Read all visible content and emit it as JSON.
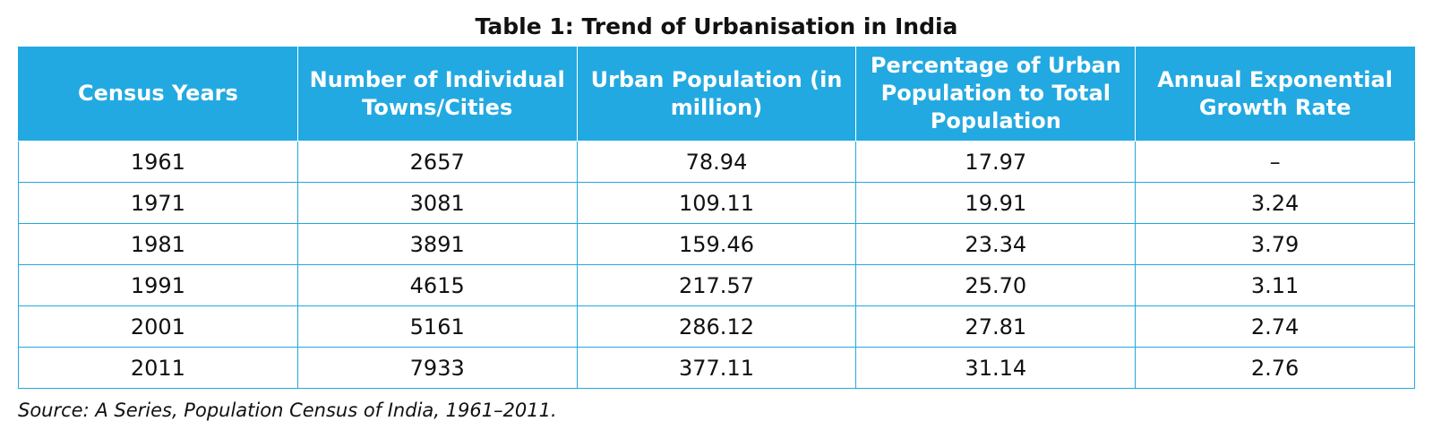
{
  "title": "Table 1: Trend of Urbanisation in India",
  "table": {
    "headers": [
      "Census Years",
      "Number of Individual Towns/Cities",
      "Urban Population (in million)",
      "Percentage of Urban Population to Total Population",
      "Annual Exponential Growth Rate"
    ],
    "rows": [
      [
        "1961",
        "2657",
        "78.94",
        "17.97",
        "–"
      ],
      [
        "1971",
        "3081",
        "109.11",
        "19.91",
        "3.24"
      ],
      [
        "1981",
        "3891",
        "159.46",
        "23.34",
        "3.79"
      ],
      [
        "1991",
        "4615",
        "217.57",
        "25.70",
        "3.11"
      ],
      [
        "2001",
        "5161",
        "286.12",
        "27.81",
        "2.74"
      ],
      [
        "2011",
        "7933",
        "377.11",
        "31.14",
        "2.76"
      ]
    ]
  },
  "source": "Source: A Series, Population Census of India, 1961–2011.",
  "colors": {
    "header_background": "#23a9e1",
    "header_text": "#ffffff",
    "border": "#23a9e1"
  }
}
